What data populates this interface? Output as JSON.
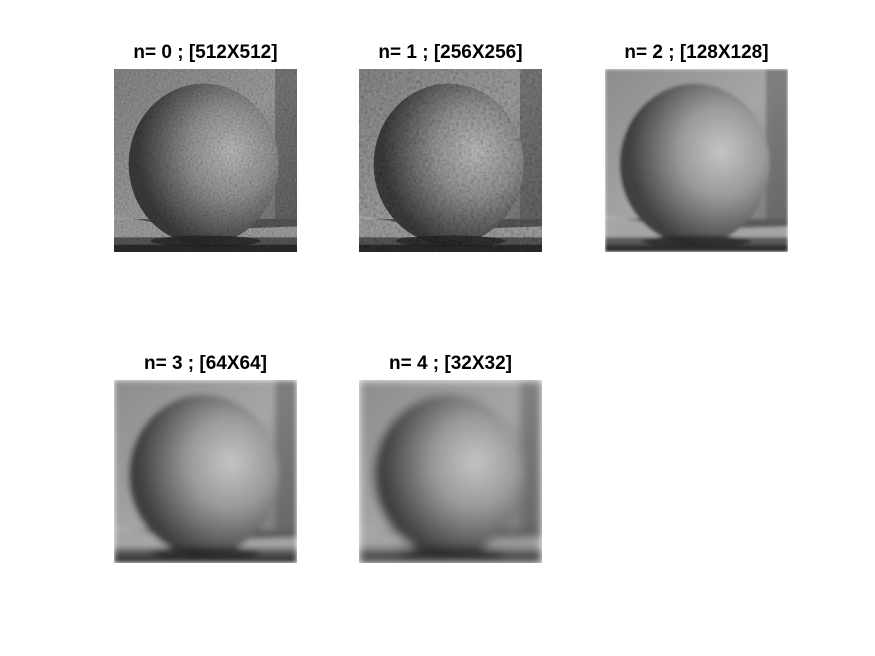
{
  "figure": {
    "panels": [
      {
        "title": "n= 0 ; [512X512]",
        "image": "orange-grayscale-full-resolution",
        "pixelation": 0
      },
      {
        "title": "n= 1 ; [256X256]",
        "image": "orange-grayscale-downsampled",
        "pixelation": 1
      },
      {
        "title": "n= 2 ; [128X128]",
        "image": "orange-grayscale-downsampled",
        "pixelation": 2
      },
      {
        "title": "n= 3 ; [64X64]",
        "image": "orange-grayscale-downsampled",
        "pixelation": 3
      },
      {
        "title": "n= 4 ; [32X32]",
        "image": "orange-grayscale-blocky",
        "pixelation": 4
      }
    ]
  }
}
